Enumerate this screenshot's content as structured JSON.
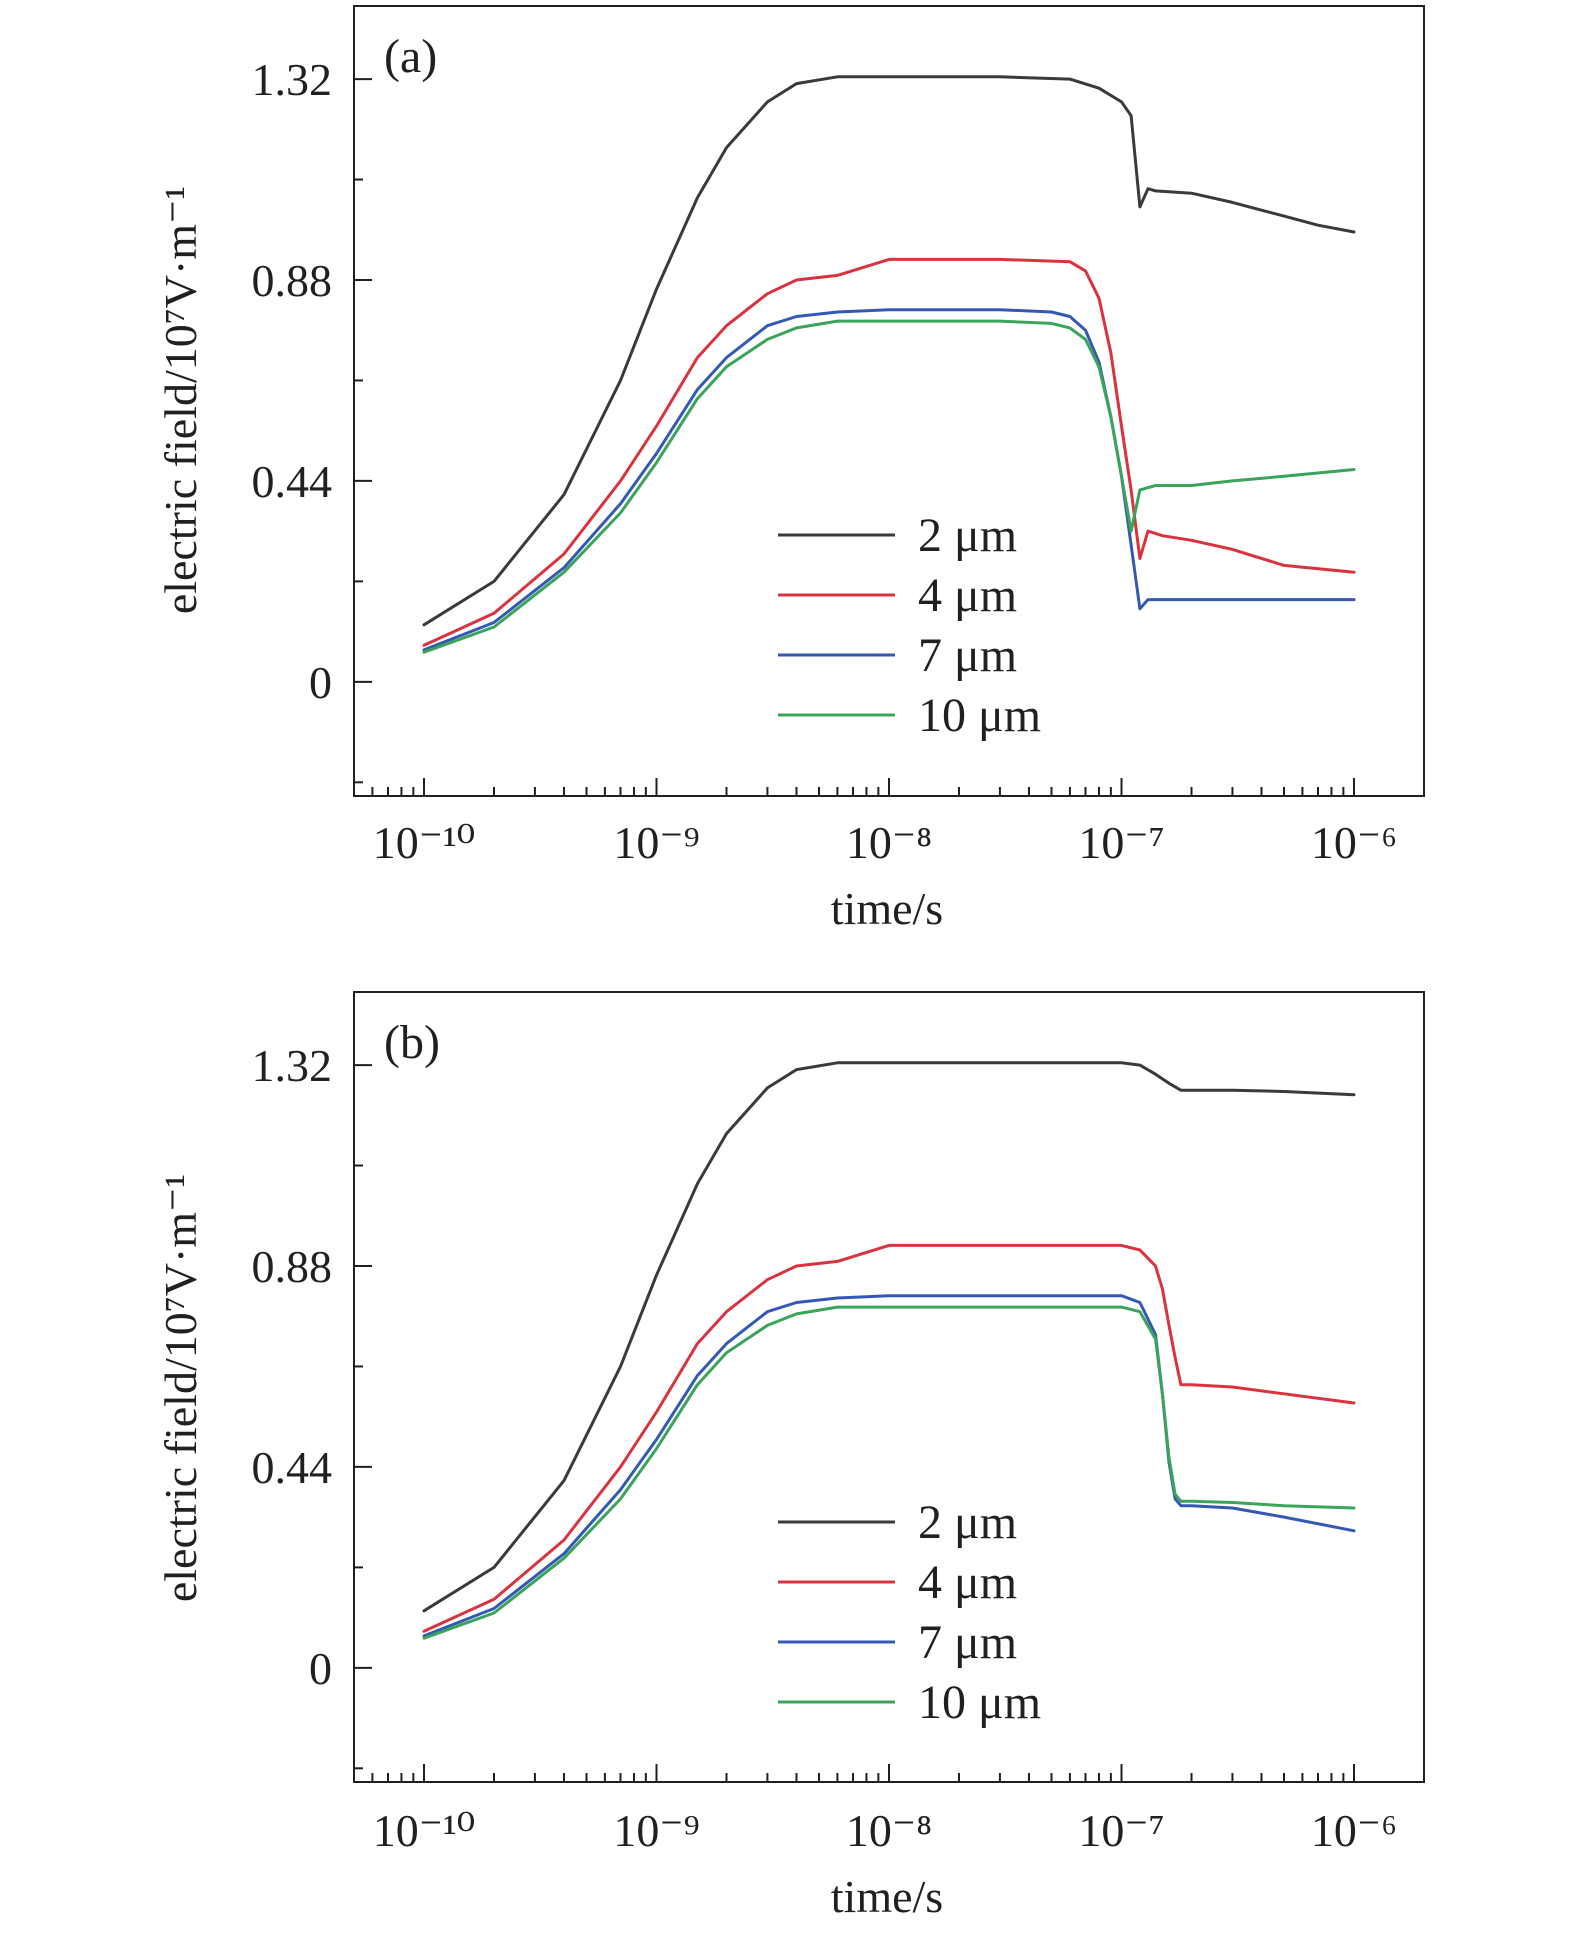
{
  "figure": {
    "background": "#ffffff",
    "axis_color": "#231f20"
  },
  "chart_data": [
    {
      "type": "line",
      "panel_label": "(a)",
      "xlabel": "time/s",
      "ylabel": "electric field/10⁷V·m⁻¹",
      "x_scale": "log",
      "xlim": [
        5e-11,
        2e-06
      ],
      "ylim": [
        -0.25,
        1.48
      ],
      "xticks": [
        1e-10,
        1e-09,
        1e-08,
        1e-07,
        1e-06
      ],
      "xtick_labels": [
        "10⁻¹⁰",
        "10⁻⁹",
        "10⁻⁸",
        "10⁻⁷",
        "10⁻⁶"
      ],
      "yticks": [
        0,
        0.44,
        0.88,
        1.32
      ],
      "ytick_labels": [
        "0",
        "0.44",
        "0.88",
        "1.32"
      ],
      "grid": false,
      "legend_position": "lower-center",
      "series": [
        {
          "name": "2 μm",
          "color": "#3a3a3a",
          "x": [
            1e-10,
            2e-10,
            4e-10,
            7e-10,
            1e-09,
            1.5e-09,
            2e-09,
            3e-09,
            4e-09,
            6e-09,
            1e-08,
            3e-08,
            6e-08,
            8e-08,
            1e-07,
            1.1e-07,
            1.2e-07,
            1.3e-07,
            1.4e-07,
            2e-07,
            3e-07,
            5e-07,
            7e-07,
            1e-06
          ],
          "y": [
            0.125,
            0.22,
            0.41,
            0.66,
            0.86,
            1.06,
            1.17,
            1.27,
            1.31,
            1.325,
            1.325,
            1.325,
            1.32,
            1.3,
            1.27,
            1.24,
            1.04,
            1.08,
            1.075,
            1.07,
            1.05,
            1.02,
            1.0,
            0.985
          ]
        },
        {
          "name": "4 μm",
          "color": "#d9333f",
          "x": [
            1e-10,
            2e-10,
            4e-10,
            7e-10,
            1e-09,
            1.5e-09,
            2e-09,
            3e-09,
            4e-09,
            6e-09,
            1e-08,
            3e-08,
            6e-08,
            7e-08,
            8e-08,
            9e-08,
            1e-07,
            1.1e-07,
            1.2e-07,
            1.3e-07,
            1.5e-07,
            2e-07,
            3e-07,
            5e-07,
            1e-06
          ],
          "y": [
            0.08,
            0.15,
            0.28,
            0.44,
            0.56,
            0.71,
            0.78,
            0.85,
            0.88,
            0.89,
            0.925,
            0.925,
            0.92,
            0.9,
            0.84,
            0.72,
            0.56,
            0.42,
            0.27,
            0.33,
            0.32,
            0.31,
            0.29,
            0.255,
            0.24
          ]
        },
        {
          "name": "7 μm",
          "color": "#3459b5",
          "x": [
            1e-10,
            2e-10,
            4e-10,
            7e-10,
            1e-09,
            1.5e-09,
            2e-09,
            3e-09,
            4e-09,
            6e-09,
            1e-08,
            3e-08,
            5e-08,
            6e-08,
            7e-08,
            8e-08,
            9e-08,
            1e-07,
            1.1e-07,
            1.2e-07,
            1.3e-07,
            1.5e-07,
            2e-07,
            5e-07,
            1e-06
          ],
          "y": [
            0.07,
            0.13,
            0.25,
            0.39,
            0.5,
            0.64,
            0.71,
            0.78,
            0.8,
            0.81,
            0.815,
            0.815,
            0.81,
            0.8,
            0.77,
            0.7,
            0.58,
            0.45,
            0.3,
            0.16,
            0.18,
            0.18,
            0.18,
            0.18,
            0.18
          ]
        },
        {
          "name": "10 μm",
          "color": "#3aa45a",
          "x": [
            1e-10,
            2e-10,
            4e-10,
            7e-10,
            1e-09,
            1.5e-09,
            2e-09,
            3e-09,
            4e-09,
            6e-09,
            1e-08,
            3e-08,
            5e-08,
            6e-08,
            7e-08,
            8e-08,
            9e-08,
            1e-07,
            1.1e-07,
            1.2e-07,
            1.4e-07,
            2e-07,
            3e-07,
            5e-07,
            1e-06
          ],
          "y": [
            0.065,
            0.12,
            0.24,
            0.37,
            0.48,
            0.62,
            0.69,
            0.75,
            0.775,
            0.79,
            0.79,
            0.79,
            0.785,
            0.775,
            0.75,
            0.69,
            0.58,
            0.45,
            0.33,
            0.42,
            0.43,
            0.43,
            0.44,
            0.45,
            0.465
          ]
        }
      ]
    },
    {
      "type": "line",
      "panel_label": "(b)",
      "xlabel": "time/s",
      "ylabel": "electric field/10⁷V·m⁻¹",
      "x_scale": "log",
      "xlim": [
        5e-11,
        2e-06
      ],
      "ylim": [
        -0.25,
        1.48
      ],
      "xticks": [
        1e-10,
        1e-09,
        1e-08,
        1e-07,
        1e-06
      ],
      "xtick_labels": [
        "10⁻¹⁰",
        "10⁻⁹",
        "10⁻⁸",
        "10⁻⁷",
        "10⁻⁶"
      ],
      "yticks": [
        0,
        0.44,
        0.88,
        1.32
      ],
      "ytick_labels": [
        "0",
        "0.44",
        "0.88",
        "1.32"
      ],
      "grid": false,
      "legend_position": "lower-center",
      "series": [
        {
          "name": "2 μm",
          "color": "#3a3a3a",
          "x": [
            1e-10,
            2e-10,
            4e-10,
            7e-10,
            1e-09,
            1.5e-09,
            2e-09,
            3e-09,
            4e-09,
            6e-09,
            1e-08,
            3e-08,
            1e-07,
            1.2e-07,
            1.4e-07,
            1.6e-07,
            1.8e-07,
            2e-07,
            3e-07,
            5e-07,
            1e-06
          ],
          "y": [
            0.125,
            0.22,
            0.41,
            0.66,
            0.86,
            1.06,
            1.17,
            1.27,
            1.31,
            1.325,
            1.325,
            1.325,
            1.325,
            1.32,
            1.3,
            1.28,
            1.265,
            1.265,
            1.265,
            1.262,
            1.255
          ]
        },
        {
          "name": "4 μm",
          "color": "#d9333f",
          "x": [
            1e-10,
            2e-10,
            4e-10,
            7e-10,
            1e-09,
            1.5e-09,
            2e-09,
            3e-09,
            4e-09,
            6e-09,
            1e-08,
            3e-08,
            1e-07,
            1.2e-07,
            1.4e-07,
            1.5e-07,
            1.6e-07,
            1.7e-07,
            1.8e-07,
            2e-07,
            3e-07,
            5e-07,
            1e-06
          ],
          "y": [
            0.08,
            0.15,
            0.28,
            0.44,
            0.56,
            0.71,
            0.78,
            0.85,
            0.88,
            0.89,
            0.925,
            0.925,
            0.925,
            0.915,
            0.88,
            0.83,
            0.75,
            0.68,
            0.62,
            0.62,
            0.615,
            0.6,
            0.58
          ]
        },
        {
          "name": "7 μm",
          "color": "#3459b5",
          "x": [
            1e-10,
            2e-10,
            4e-10,
            7e-10,
            1e-09,
            1.5e-09,
            2e-09,
            3e-09,
            4e-09,
            6e-09,
            1e-08,
            3e-08,
            1e-07,
            1.2e-07,
            1.4e-07,
            1.5e-07,
            1.6e-07,
            1.7e-07,
            1.8e-07,
            2e-07,
            3e-07,
            5e-07,
            1e-06
          ],
          "y": [
            0.07,
            0.13,
            0.25,
            0.39,
            0.5,
            0.64,
            0.71,
            0.78,
            0.8,
            0.81,
            0.815,
            0.815,
            0.815,
            0.8,
            0.73,
            0.6,
            0.45,
            0.37,
            0.355,
            0.355,
            0.35,
            0.33,
            0.3
          ]
        },
        {
          "name": "10 μm",
          "color": "#3aa45a",
          "x": [
            1e-10,
            2e-10,
            4e-10,
            7e-10,
            1e-09,
            1.5e-09,
            2e-09,
            3e-09,
            4e-09,
            6e-09,
            1e-08,
            3e-08,
            1e-07,
            1.2e-07,
            1.4e-07,
            1.5e-07,
            1.6e-07,
            1.7e-07,
            1.8e-07,
            2e-07,
            3e-07,
            5e-07,
            1e-06
          ],
          "y": [
            0.065,
            0.12,
            0.24,
            0.37,
            0.48,
            0.62,
            0.69,
            0.75,
            0.775,
            0.79,
            0.79,
            0.79,
            0.79,
            0.78,
            0.72,
            0.6,
            0.46,
            0.38,
            0.365,
            0.365,
            0.362,
            0.355,
            0.35
          ]
        }
      ]
    }
  ]
}
